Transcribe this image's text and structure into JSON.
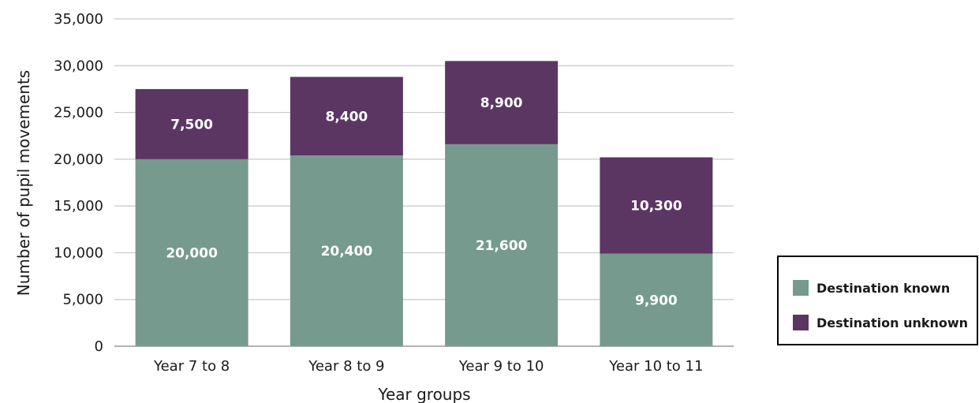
{
  "chart_data": {
    "type": "bar",
    "stacked": true,
    "categories": [
      "Year 7 to 8",
      "Year 8 to 9",
      "Year 9 to 10",
      "Year 10 to 11"
    ],
    "series": [
      {
        "name": "Destination known",
        "values": [
          20000,
          20400,
          21600,
          9900
        ],
        "color": "#769A8E"
      },
      {
        "name": "Destination unknown",
        "values": [
          7500,
          8400,
          8900,
          10300
        ],
        "color": "#5B3663"
      }
    ],
    "data_labels": [
      [
        "20,000",
        "20,400",
        "21,600",
        "9,900"
      ],
      [
        "7,500",
        "8,400",
        "8,900",
        "10,300"
      ]
    ],
    "y_ticks": [
      {
        "value": 0,
        "label": "0"
      },
      {
        "value": 5000,
        "label": "5,000"
      },
      {
        "value": 10000,
        "label": "10,000"
      },
      {
        "value": 15000,
        "label": "15,000"
      },
      {
        "value": 20000,
        "label": "20,000"
      },
      {
        "value": 25000,
        "label": "25,000"
      },
      {
        "value": 30000,
        "label": "30,000"
      },
      {
        "value": 35000,
        "label": "35,000"
      }
    ],
    "ylim": [
      0,
      35000
    ],
    "xlabel": "Year groups",
    "ylabel": "Number of pupil movements",
    "grid": true,
    "legend_position": "right"
  }
}
